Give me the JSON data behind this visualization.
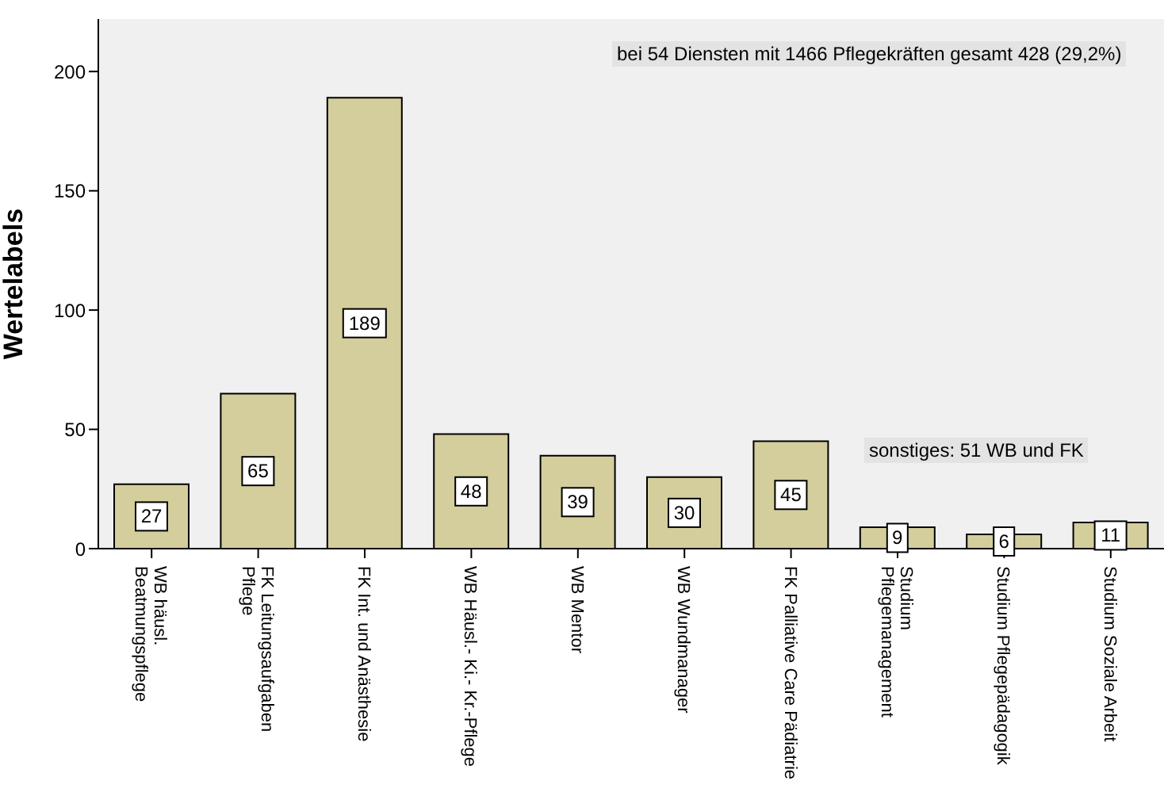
{
  "chart_data": {
    "type": "bar",
    "ylabel": "Wertelabels",
    "categories": [
      "WB häusl.\nBeatmungspflege",
      "FK Leitungsaufgaben\nPflege",
      "FK Int. und Anästhesie",
      "WB Häusl.- Ki.- Kr.-Pflege",
      "WB Mentor",
      "WB Wundmanager",
      "FK Palliative Care Pädiatrie",
      "Studium\nPflegemanagement",
      "Studium Pflegepädagogik",
      "Studium Soziale Arbeit"
    ],
    "values": [
      27,
      65,
      189,
      48,
      39,
      30,
      45,
      9,
      6,
      11
    ],
    "color": "#d3ce9c",
    "ylim": [
      0,
      222
    ],
    "yticks": [
      0,
      50,
      100,
      150,
      200
    ],
    "grid": false,
    "data_labels": true,
    "annotations": [
      "bei 54 Diensten mit 1466 Pflegekräften gesamt 428 (29,2%)",
      "sonstiges: 51 WB und FK"
    ]
  }
}
